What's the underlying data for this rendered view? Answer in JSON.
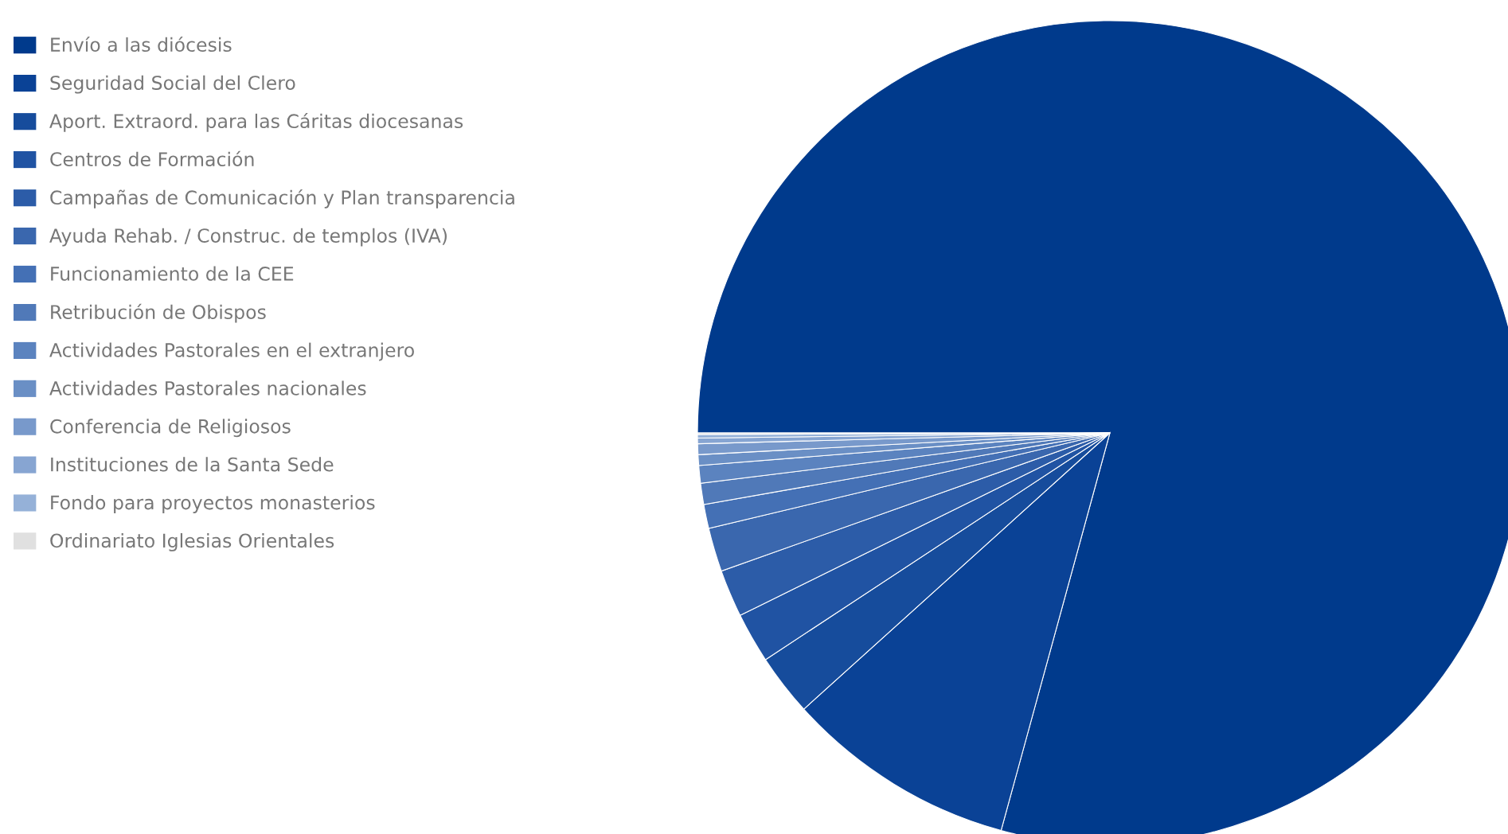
{
  "chart_data": {
    "type": "pie",
    "categories": [
      "Envío a las diócesis",
      "Seguridad Social del Clero",
      "Aport. Extraord. para las Cáritas diocesanas",
      "Centros de Formación",
      "Campañas de Comunicación y Plan transparencia",
      "Ayuda Rehab. / Construc. de templos (IVA)",
      "Funcionamiento de la CEE",
      "Retribución de Obispos",
      "Actividades Pastorales en el extranjero",
      "Actividades Pastorales nacionales",
      "Conferencia de Religiosos",
      "Instituciones de la Santa Sede",
      "Fondo para proyectos monasterios",
      "Ordinariato Iglesias Orientales"
    ],
    "values": [
      79.25,
      9.06,
      2.42,
      1.97,
      1.86,
      1.72,
      0.94,
      0.83,
      0.69,
      0.42,
      0.42,
      0.22,
      0.14,
      0.06
    ],
    "colors": [
      "#003a8c",
      "#0a4296",
      "#164c9c",
      "#2053a3",
      "#2c5ca8",
      "#3a67ae",
      "#4470b5",
      "#5079b8",
      "#5b83bf",
      "#6a8fc5",
      "#7899cb",
      "#87a5d2",
      "#95b1d8",
      "#e0e0e0"
    ],
    "legend": "left"
  }
}
